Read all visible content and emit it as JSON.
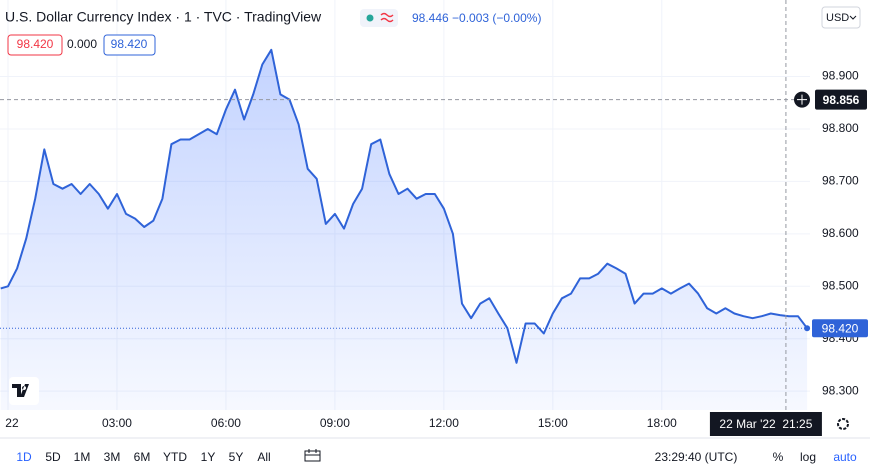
{
  "header": {
    "title": "U.S. Dollar Currency Index · 1 · TVC · TradingView",
    "quote": "98.446 −0.003 (−0.00%)",
    "bid": "98.420",
    "spread": "0.000",
    "ask": "98.420",
    "currency": "USD"
  },
  "chart_data": {
    "type": "line",
    "color": "#2f63d8",
    "x": [
      -0.2,
      0,
      0.25,
      0.5,
      0.75,
      1,
      1.25,
      1.5,
      1.75,
      2,
      2.25,
      2.5,
      2.75,
      3,
      3.25,
      3.5,
      3.75,
      4,
      4.25,
      4.5,
      4.75,
      5,
      5.25,
      5.5,
      5.75,
      6,
      6.25,
      6.5,
      6.75,
      7,
      7.25,
      7.5,
      7.75,
      8,
      8.25,
      8.5,
      8.75,
      9,
      9.25,
      9.5,
      9.75,
      10,
      10.25,
      10.5,
      10.75,
      11,
      11.25,
      11.5,
      11.75,
      12,
      12.25,
      12.5,
      12.75,
      13,
      13.25,
      13.5,
      13.75,
      14,
      14.25,
      14.5,
      14.75,
      15,
      15.25,
      15.5,
      15.75,
      16,
      16.25,
      16.5,
      16.75,
      17,
      17.25,
      17.5,
      17.75,
      18,
      18.25,
      18.5,
      18.75,
      19,
      19.25,
      19.5,
      19.75,
      20,
      20.25,
      20.5,
      20.75,
      21,
      21.25,
      21.5,
      21.75,
      22
    ],
    "values": [
      98.496,
      98.5,
      98.534,
      98.591,
      98.667,
      98.761,
      98.695,
      98.686,
      98.695,
      98.676,
      98.695,
      98.676,
      98.648,
      98.676,
      98.638,
      98.629,
      98.613,
      98.625,
      98.667,
      98.771,
      98.78,
      98.78,
      98.79,
      98.8,
      98.79,
      98.837,
      98.875,
      98.818,
      98.866,
      98.923,
      98.951,
      98.866,
      98.856,
      98.809,
      98.724,
      98.705,
      98.619,
      98.638,
      98.61,
      98.657,
      98.686,
      98.771,
      98.78,
      98.714,
      98.676,
      98.686,
      98.667,
      98.676,
      98.676,
      98.648,
      98.6,
      98.467,
      98.439,
      98.467,
      98.477,
      98.448,
      98.42,
      98.354,
      98.429,
      98.429,
      98.41,
      98.448,
      98.477,
      98.486,
      98.515,
      98.515,
      98.524,
      98.543,
      98.534,
      98.524,
      98.467,
      98.486,
      98.486,
      98.496,
      98.486,
      98.496,
      98.505,
      98.486,
      98.458,
      98.448,
      98.458,
      98.448,
      98.443,
      98.439,
      98.443,
      98.448,
      98.445,
      98.443,
      98.443,
      98.42
    ],
    "last_price_label": "98.420",
    "xlim": [
      -0.22,
      22.08
    ],
    "ylim": [
      98.264,
      99.046
    ],
    "xticks": [
      {
        "value": 0,
        "label": "22"
      },
      {
        "value": 3,
        "label": "03:00"
      },
      {
        "value": 6,
        "label": "06:00"
      },
      {
        "value": 9,
        "label": "09:00"
      },
      {
        "value": 12,
        "label": "12:00"
      },
      {
        "value": 15,
        "label": "15:00"
      },
      {
        "value": 18,
        "label": "18:00"
      }
    ],
    "yticks": [
      {
        "value": 98.3,
        "label": "98.300"
      },
      {
        "value": 98.4,
        "label": "98.400"
      },
      {
        "value": 98.5,
        "label": "98.500"
      },
      {
        "value": 98.6,
        "label": "98.600"
      },
      {
        "value": 98.7,
        "label": "98.700"
      },
      {
        "value": 98.8,
        "label": "98.800"
      },
      {
        "value": 98.9,
        "label": "98.900"
      }
    ],
    "crosshair_y": 98.856,
    "crosshair_x": {
      "value": 21.417,
      "label": "22 Mar '22  21:25"
    }
  },
  "toolbar": {
    "ranges": [
      "1D",
      "5D",
      "1M",
      "3M",
      "6M",
      "YTD",
      "1Y",
      "5Y",
      "All"
    ],
    "clock": "23:29:40 (UTC)",
    "options": [
      "%",
      "log",
      "auto"
    ]
  }
}
